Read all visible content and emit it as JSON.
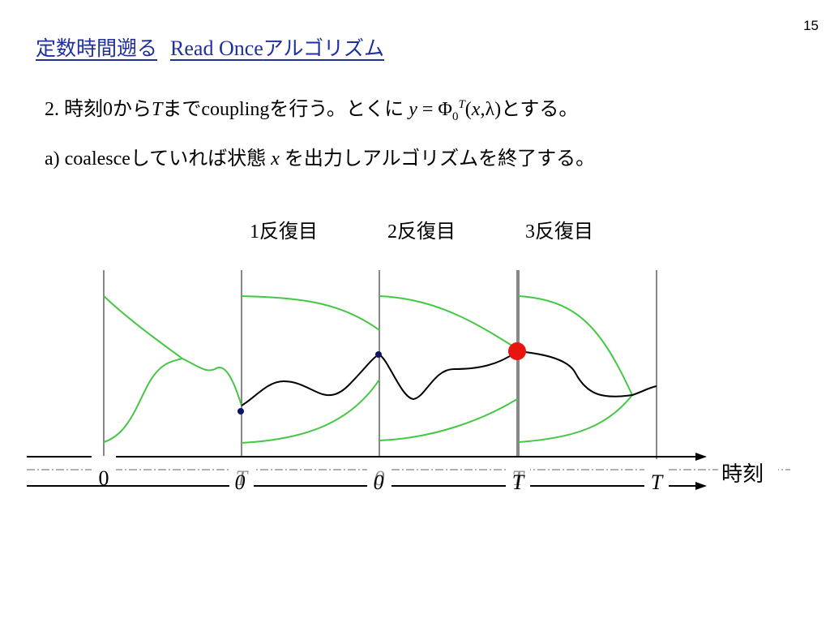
{
  "page_number": "15",
  "title": {
    "jp": "定数時間遡る",
    "en": "Read Once",
    "jp2": "アルゴリズム"
  },
  "step2": {
    "num": "2.",
    "t1": "時刻",
    "zero": "0",
    "t2": "から",
    "T": "T",
    "t3": "まで",
    "coupling": "coupling",
    "t4": "を行う。とくに",
    "y": "y",
    "eq": " = Φ",
    "sub0": "0",
    "supT": "T",
    "paren_open": "(",
    "x": "x",
    "comma_lambda": ",λ)",
    "t5": "とする。"
  },
  "step_a": {
    "label": "a) coalesce",
    "t1": "していれば状態",
    "x": "x",
    "t2": "を出力しアルゴリズムを終了する。"
  },
  "iterations": [
    {
      "num": "1",
      "label": "反復目"
    },
    {
      "num": "2",
      "label": "反復目"
    },
    {
      "num": "3",
      "label": "反復目"
    }
  ],
  "axis": {
    "time_label": "時刻",
    "upper_ticks": [
      "0",
      "T",
      "0",
      "T"
    ],
    "lower_ticks": [
      "0",
      "0",
      "T",
      "T"
    ]
  },
  "colors": {
    "title": "#1f2fa0",
    "green_path": "#44c744",
    "black_path": "#000000",
    "dot": "#0b1566",
    "coalesce_dot": "#e8140f",
    "vertical": "#555555"
  }
}
